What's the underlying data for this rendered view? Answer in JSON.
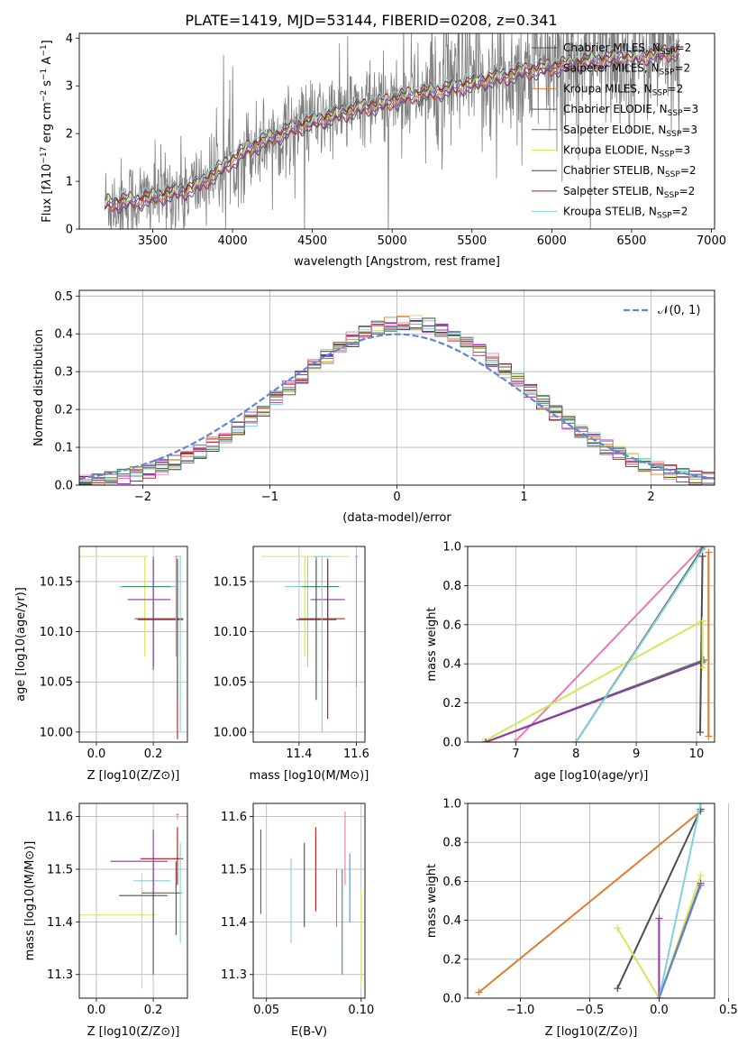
{
  "figure": {
    "title": "PLATE=1419, MJD=53144, FIBERID=0208, z=0.341"
  },
  "model_colors": {
    "Chabrier MILES": "#4d4d4d",
    "Salpeter MILES": "#9933aa",
    "Kroupa MILES": "#e07b2c",
    "Chabrier ELODIE": "#555555",
    "Salpeter ELODIE": "#a035b8",
    "Kroupa ELODIE": "#d4e65a",
    "Chabrier STELIB": "#444444",
    "Salpeter STELIB": "#b01515",
    "Kroupa STELIB": "#7ed2dc",
    "hist_extra": "#e57cb4",
    "hist_green": "#3f8f5f",
    "data_gray": "#808080",
    "normal_curve": "#5b87d6"
  },
  "chart_data": [
    {
      "id": "spectrum",
      "type": "line",
      "title": "PLATE=1419, MJD=53144, FIBERID=0208, z=0.341",
      "xlabel": "wavelength [Angstrom, rest frame]",
      "ylabel_prefix": "Flux [f",
      "ylabel_mid": "10",
      "ylabel_exp": "−17",
      "ylabel_rest": " erg cm",
      "ylabel_unit2": "−2",
      "ylabel_s": " s",
      "ylabel_unit1": "−1",
      "ylabel_A": " A",
      "ylabel_unit3": "−1",
      "ylabel_end": "]",
      "xlim": [
        3040,
        7020
      ],
      "ylim": [
        0,
        4.1
      ],
      "xticks": [
        3500,
        4000,
        4500,
        5000,
        5500,
        6000,
        6500,
        7000
      ],
      "yticks": [
        0,
        1,
        2,
        3,
        4
      ],
      "grid": false,
      "legend_placement": "top-right",
      "legend": [
        {
          "label": "Chabrier MILES, N",
          "sub": "SSP",
          "suffix": "=2",
          "color": "#4d4d4d"
        },
        {
          "label": "Salpeter MILES, N",
          "sub": "SSP",
          "suffix": "=2",
          "color": "#9933aa"
        },
        {
          "label": "Kroupa MILES, N",
          "sub": "SSP",
          "suffix": "=2",
          "color": "#e07b2c"
        },
        {
          "label": "Chabrier ELODIE, N",
          "sub": "SSP",
          "suffix": "=3",
          "color": "#555555"
        },
        {
          "label": "Salpeter ELODIE, N",
          "sub": "SSP",
          "suffix": "=3",
          "color": "#a035b8"
        },
        {
          "label": "Kroupa ELODIE, N",
          "sub": "SSP",
          "suffix": "=3",
          "color": "#d4e65a"
        },
        {
          "label": "Chabrier STELIB, N",
          "sub": "SSP",
          "suffix": "=2",
          "color": "#444444"
        },
        {
          "label": "Salpeter STELIB, N",
          "sub": "SSP",
          "suffix": "=2",
          "color": "#b01515"
        },
        {
          "label": "Kroupa STELIB, N",
          "sub": "SSP",
          "suffix": "=2",
          "color": "#7ed2dc"
        }
      ],
      "model_anchor": {
        "x": [
          3200,
          3400,
          3600,
          3700,
          3800,
          3900,
          4000,
          4100,
          4200,
          4300,
          4400,
          4500,
          4600,
          4700,
          4800,
          4900,
          5000,
          5100,
          5200,
          5300,
          5400,
          5500,
          5600,
          5700,
          5800,
          5900,
          6000,
          6100,
          6200,
          6300,
          6400,
          6500,
          6600,
          6700,
          6800
        ],
        "y": [
          0.55,
          0.6,
          0.75,
          0.82,
          0.95,
          1.2,
          1.45,
          1.7,
          1.85,
          2.0,
          2.15,
          2.25,
          2.35,
          2.45,
          2.55,
          2.6,
          2.7,
          2.8,
          2.85,
          2.9,
          3.0,
          3.05,
          3.15,
          3.2,
          3.3,
          3.35,
          3.4,
          3.45,
          3.5,
          3.55,
          3.6,
          3.6,
          3.65,
          3.7,
          3.75
        ]
      },
      "data_range": [
        3200,
        6800
      ],
      "data_scatter": 0.45
    },
    {
      "id": "residuals",
      "type": "step",
      "xlabel": "(data-model)/error",
      "ylabel": "Normed distribution",
      "xlim": [
        -2.5,
        2.5
      ],
      "ylim": [
        0,
        0.515
      ],
      "xticks": [
        -2,
        -1,
        0,
        1,
        2
      ],
      "xtick_labels": [
        "−2",
        "−1",
        "0",
        "1",
        "2"
      ],
      "yticks": [
        0.0,
        0.1,
        0.2,
        0.3,
        0.4,
        0.5
      ],
      "ytick_labels": [
        "0.0",
        "0.1",
        "0.2",
        "0.3",
        "0.4",
        "0.5"
      ],
      "grid": true,
      "legend_placement": "top-right",
      "legend": [
        {
          "label": "𝒩(0, 1)",
          "color": "#5b87d6",
          "style": "dashed"
        }
      ],
      "normal": {
        "mean": 0,
        "sigma": 1
      },
      "bin_width": 0.1,
      "hist_shift": 0.08,
      "hist_sigma": 0.92,
      "hist_peak": 0.43
    },
    {
      "id": "age_vs_Z",
      "type": "errorbar",
      "xlabel": "Z [log10(Z/Z⊙)]",
      "ylabel": "age  [log10(age/yr)]",
      "xlim": [
        -0.06,
        0.32
      ],
      "ylim": [
        9.99,
        10.185
      ],
      "xticks": [
        0.0,
        0.2
      ],
      "xtick_labels": [
        "0.0",
        "0.2"
      ],
      "yticks": [
        10.0,
        10.05,
        10.1,
        10.15
      ],
      "ytick_labels": [
        "10.00",
        "10.05",
        "10.10",
        "10.15"
      ],
      "grid": true,
      "points": [
        {
          "x": 0.17,
          "y": 10.175,
          "xerr": [
            0.25,
            0.01
          ],
          "yerr": [
            0.1,
            0.0
          ],
          "color": "#d4e65a"
        },
        {
          "x": 0.2,
          "y": 10.145,
          "xerr": [
            0.12,
            0.08
          ],
          "yerr": [
            0.08,
            0.03
          ],
          "color": "#7ed2dc"
        },
        {
          "x": 0.2,
          "y": 10.145,
          "xerr": [
            0.11,
            0.06
          ],
          "yerr": [
            0.08,
            0.03
          ],
          "color": "#3f8f5f"
        },
        {
          "x": 0.2,
          "y": 10.132,
          "xerr": [
            0.09,
            0.06
          ],
          "yerr": [
            0.07,
            0.04
          ],
          "color": "#9933aa"
        },
        {
          "x": 0.285,
          "y": 10.113,
          "xerr": [
            0.15,
            0.02
          ],
          "yerr": [
            0.12,
            0.06
          ],
          "color": "#b01515"
        },
        {
          "x": 0.285,
          "y": 10.112,
          "xerr": [
            0.14,
            0.02
          ],
          "yerr": [
            0.08,
            0.06
          ],
          "color": "#4d4d4d"
        },
        {
          "x": 0.295,
          "y": 10.175,
          "xerr": [
            0.01,
            0.005
          ],
          "yerr": [
            0.175,
            0.0
          ],
          "color": "#7ed2dc"
        },
        {
          "x": 0.28,
          "y": 10.175,
          "xerr": [
            0.005,
            0.005
          ],
          "yerr": [
            0.1,
            0.0
          ],
          "color": "#e57cb4"
        }
      ]
    },
    {
      "id": "age_vs_mass",
      "type": "errorbar",
      "xlabel": "mass [log10(M/M⊙)]",
      "ylabel": "",
      "xlim": [
        11.24,
        11.63
      ],
      "ylim": [
        9.99,
        10.185
      ],
      "xticks": [
        11.4,
        11.6
      ],
      "xtick_labels": [
        "11.4",
        "11.6"
      ],
      "yticks": [
        10.0,
        10.05,
        10.1,
        10.15
      ],
      "ytick_labels": [
        "10.00",
        "10.05",
        "10.10",
        "10.15"
      ],
      "grid": true,
      "points": [
        {
          "x": 11.42,
          "y": 10.175,
          "xerr": [
            0.15,
            0.16
          ],
          "yerr": [
            0.1,
            0.0
          ],
          "color": "#d4e65a"
        },
        {
          "x": 11.43,
          "y": 10.145,
          "xerr": [
            0.08,
            0.08
          ],
          "yerr": [
            0.08,
            0.03
          ],
          "color": "#7ed2dc"
        },
        {
          "x": 11.46,
          "y": 10.145,
          "xerr": [
            0.05,
            0.08
          ],
          "yerr": [
            0.1,
            0.03
          ],
          "color": "#3f8f5f"
        },
        {
          "x": 11.5,
          "y": 10.132,
          "xerr": [
            0.06,
            0.06
          ],
          "yerr": [
            0.07,
            0.04
          ],
          "color": "#9933aa"
        },
        {
          "x": 11.5,
          "y": 10.113,
          "xerr": [
            0.1,
            0.06
          ],
          "yerr": [
            0.1,
            0.06
          ],
          "color": "#b01515"
        },
        {
          "x": 11.46,
          "y": 10.112,
          "xerr": [
            0.07,
            0.07
          ],
          "yerr": [
            0.08,
            0.06
          ],
          "color": "#4d4d4d"
        },
        {
          "x": 11.48,
          "y": 10.175,
          "xerr": [
            0.03,
            0.03
          ],
          "yerr": [
            0.175,
            0.0
          ],
          "color": "#7ed2dc"
        },
        {
          "x": 11.6,
          "y": 10.175,
          "xerr": [
            0.005,
            0.005
          ],
          "yerr": [
            0.13,
            0.0
          ],
          "color": "#e57cb4"
        }
      ]
    },
    {
      "id": "weight_vs_age",
      "type": "line",
      "xlabel": "age  [log10(age/yr)]",
      "ylabel": "mass weight",
      "xlim": [
        6.2,
        10.3
      ],
      "ylim": [
        0,
        1.0
      ],
      "xticks": [
        7,
        8,
        9,
        10
      ],
      "yticks": [
        0.0,
        0.2,
        0.4,
        0.6,
        0.8,
        1.0
      ],
      "ytick_labels": [
        "0.0",
        "0.2",
        "0.4",
        "0.6",
        "0.8",
        "1.0"
      ],
      "grid": true,
      "series": [
        {
          "x": [
            6.98,
            10.1
          ],
          "y": [
            0.0,
            1.0
          ],
          "color": "#e57cb4"
        },
        {
          "x": [
            6.45,
            10.1
          ],
          "y": [
            0.0,
            0.62
          ],
          "color": "#d4e65a"
        },
        {
          "x": [
            6.5,
            10.12
          ],
          "y": [
            0.0,
            0.42
          ],
          "color": "#3f8f5f"
        },
        {
          "x": [
            6.5,
            10.1
          ],
          "y": [
            0.0,
            0.41
          ],
          "color": "#9933aa"
        },
        {
          "x": [
            8.0,
            10.12
          ],
          "y": [
            0.0,
            1.0
          ],
          "color": "#4d4d4d"
        },
        {
          "x": [
            8.0,
            10.14
          ],
          "y": [
            0.0,
            1.0
          ],
          "color": "#7ed2dc"
        },
        {
          "x": [
            10.2,
            10.2
          ],
          "y": [
            0.03,
            0.97
          ],
          "color": "#e07b2c"
        },
        {
          "x": [
            10.06,
            10.1
          ],
          "y": [
            0.05,
            0.95
          ],
          "color": "#4d4d4d"
        },
        {
          "x": [
            10.1,
            10.1
          ],
          "y": [
            0.38,
            0.62
          ],
          "color": "#d4e65a"
        }
      ]
    },
    {
      "id": "mass_vs_Z",
      "type": "errorbar",
      "xlabel": "Z [log10(Z/Z⊙)]",
      "ylabel": "mass [log10(M/M⊙)]",
      "xlim": [
        -0.06,
        0.32
      ],
      "ylim": [
        11.255,
        11.625
      ],
      "xticks": [
        0.0,
        0.2
      ],
      "xtick_labels": [
        "0.0",
        "0.2"
      ],
      "yticks": [
        11.3,
        11.4,
        11.5,
        11.6
      ],
      "ytick_labels": [
        "11.3",
        "11.4",
        "11.5",
        "11.6"
      ],
      "grid": true,
      "points": [
        {
          "x": 0.16,
          "y": 11.413,
          "xerr": [
            0.22,
            0.05
          ],
          "yerr": [
            0.14,
            0.08
          ],
          "color": "#d4e65a"
        },
        {
          "x": 0.2,
          "y": 11.478,
          "xerr": [
            0.07,
            0.06
          ],
          "yerr": [
            0.08,
            0.05
          ],
          "color": "#7ed2dc"
        },
        {
          "x": 0.2,
          "y": 11.45,
          "xerr": [
            0.12,
            0.05
          ],
          "yerr": [
            0.15,
            0.06
          ],
          "color": "#4d4d4d"
        },
        {
          "x": 0.2,
          "y": 11.515,
          "xerr": [
            0.15,
            0.05
          ],
          "yerr": [
            0.06,
            0.06
          ],
          "color": "#9933aa"
        },
        {
          "x": 0.285,
          "y": 11.52,
          "xerr": [
            0.13,
            0.02
          ],
          "yerr": [
            0.05,
            0.06
          ],
          "color": "#b01515"
        },
        {
          "x": 0.28,
          "y": 11.455,
          "xerr": [
            0.12,
            0.02
          ],
          "yerr": [
            0.08,
            0.06
          ],
          "color": "#4d4d4d"
        },
        {
          "x": 0.295,
          "y": 11.5,
          "xerr": [
            0.01,
            0.01
          ],
          "yerr": [
            0.14,
            0.05
          ],
          "color": "#7ed2dc"
        },
        {
          "x": 0.285,
          "y": 11.604,
          "xerr": [
            0.005,
            0.005
          ],
          "yerr": [
            0.01,
            0.002
          ],
          "color": "#e57cb4"
        }
      ]
    },
    {
      "id": "mass_vs_ebv",
      "type": "errorbar",
      "xlabel": "E(B-V)",
      "ylabel": "",
      "xlim": [
        0.043,
        0.102
      ],
      "ylim": [
        11.255,
        11.625
      ],
      "xticks": [
        0.05,
        0.1
      ],
      "xtick_labels": [
        "0.05",
        "0.10"
      ],
      "yticks": [
        11.3,
        11.4,
        11.5,
        11.6
      ],
      "ytick_labels": [
        "11.3",
        "11.4",
        "11.5",
        "11.6"
      ],
      "grid": true,
      "points": [
        {
          "x": 0.047,
          "y": 11.495,
          "yerr": [
            0.08,
            0.08
          ],
          "color": "#9933aa"
        },
        {
          "x": 0.063,
          "y": 11.44,
          "yerr": [
            0.08,
            0.08
          ],
          "color": "#7ed2dc"
        },
        {
          "x": 0.07,
          "y": 11.47,
          "yerr": [
            0.08,
            0.08
          ],
          "color": "#4d4d4d"
        },
        {
          "x": 0.076,
          "y": 11.5,
          "yerr": [
            0.08,
            0.08
          ],
          "color": "#b01515"
        },
        {
          "x": 0.087,
          "y": 11.445,
          "yerr": [
            0.055,
            0.055
          ],
          "color": "#e07b2c"
        },
        {
          "x": 0.09,
          "y": 11.4,
          "yerr": [
            0.1,
            0.1
          ],
          "color": "#3f8f5f"
        },
        {
          "x": 0.0915,
          "y": 11.54,
          "yerr": [
            0.07,
            0.07
          ],
          "color": "#e57cb4"
        },
        {
          "x": 0.094,
          "y": 11.465,
          "yerr": [
            0.065,
            0.065
          ],
          "color": "#5b87d6"
        },
        {
          "x": 0.1,
          "y": 11.37,
          "yerr": [
            0.09,
            0.09
          ],
          "color": "#d4e65a"
        }
      ]
    },
    {
      "id": "weight_vs_Z",
      "type": "line",
      "xlabel": "Z [log10(Z/Z⊙)]",
      "ylabel": "mass weight",
      "xlim": [
        -1.38,
        0.4
      ],
      "ylim": [
        0,
        1.0
      ],
      "xticks": [
        -1.0,
        -0.5,
        0.0,
        0.5
      ],
      "xtick_labels": [
        "−1.0",
        "−0.5",
        "0.0",
        "0.5"
      ],
      "yticks": [
        0.0,
        0.2,
        0.4,
        0.6,
        0.8,
        1.0
      ],
      "ytick_labels": [
        "0.0",
        "0.2",
        "0.4",
        "0.6",
        "0.8",
        "1.0"
      ],
      "grid": true,
      "series": [
        {
          "x": [
            -1.3,
            0.3
          ],
          "y": [
            0.03,
            0.96
          ],
          "color": "#e07b2c"
        },
        {
          "x": [
            -0.3,
            0.3
          ],
          "y": [
            0.05,
            0.97
          ],
          "color": "#4d4d4d"
        },
        {
          "x": [
            -0.3,
            0.0,
            0.3
          ],
          "y": [
            0.36,
            0.0,
            0.63
          ],
          "color": "#d4e65a"
        },
        {
          "x": [
            0.0,
            0.0,
            0.3
          ],
          "y": [
            0.41,
            0.0,
            0.59
          ],
          "color": "#9933aa"
        },
        {
          "x": [
            0.0,
            0.3
          ],
          "y": [
            0.0,
            1.0
          ],
          "color": "#7ed2dc"
        },
        {
          "x": [
            0.0,
            0.3
          ],
          "y": [
            0.0,
            0.58
          ],
          "color": "#5b87d6"
        }
      ]
    }
  ]
}
